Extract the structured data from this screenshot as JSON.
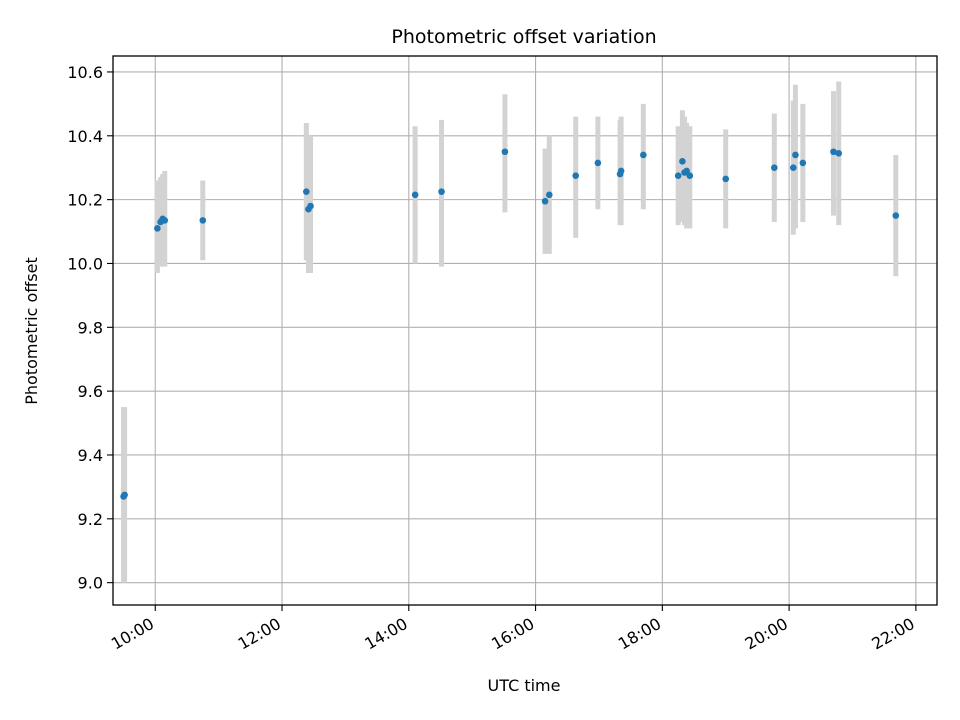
{
  "chart_data": {
    "type": "scatter",
    "title": "Photometric offset variation",
    "xlabel": "UTC time",
    "ylabel": "Photometric offset",
    "x_is_time": true,
    "x_unit": "HH:MM",
    "xlim": [
      "09:20",
      "22:20"
    ],
    "ylim": [
      8.93,
      10.65
    ],
    "xticks": [
      "10:00",
      "12:00",
      "14:00",
      "16:00",
      "18:00",
      "20:00",
      "22:00"
    ],
    "yticks": [
      9.0,
      9.2,
      9.4,
      9.6,
      9.8,
      10.0,
      10.2,
      10.4,
      10.6
    ],
    "ytick_labels": [
      "9.0",
      "9.2",
      "9.4",
      "9.6",
      "9.8",
      "10.0",
      "10.2",
      "10.4",
      "10.6"
    ],
    "grid": true,
    "colors": {
      "point": "#1f77b4",
      "errorbar": "#d3d3d3",
      "grid": "#b0b0b0"
    },
    "series": [
      {
        "points": [
          {
            "x": "09:30",
            "y": 9.27,
            "err": [
              9.0,
              9.55
            ]
          },
          {
            "x": "09:31",
            "y": 9.275,
            "err": [
              9.0,
              9.55
            ]
          },
          {
            "x": "10:02",
            "y": 10.11,
            "err": [
              9.97,
              10.26
            ]
          },
          {
            "x": "10:05",
            "y": 10.13,
            "err": [
              9.99,
              10.27
            ]
          },
          {
            "x": "10:07",
            "y": 10.14,
            "err": [
              10.0,
              10.28
            ]
          },
          {
            "x": "10:09",
            "y": 10.135,
            "err": [
              9.99,
              10.29
            ]
          },
          {
            "x": "10:45",
            "y": 10.135,
            "err": [
              10.01,
              10.26
            ]
          },
          {
            "x": "12:23",
            "y": 10.225,
            "err": [
              10.01,
              10.44
            ]
          },
          {
            "x": "12:25",
            "y": 10.17,
            "err": [
              9.97,
              10.39
            ]
          },
          {
            "x": "12:27",
            "y": 10.18,
            "err": [
              9.97,
              10.4
            ]
          },
          {
            "x": "14:06",
            "y": 10.215,
            "err": [
              10.0,
              10.43
            ]
          },
          {
            "x": "14:31",
            "y": 10.225,
            "err": [
              9.99,
              10.45
            ]
          },
          {
            "x": "15:31",
            "y": 10.35,
            "err": [
              10.16,
              10.53
            ]
          },
          {
            "x": "16:09",
            "y": 10.195,
            "err": [
              10.03,
              10.36
            ]
          },
          {
            "x": "16:13",
            "y": 10.215,
            "err": [
              10.03,
              10.4
            ]
          },
          {
            "x": "16:38",
            "y": 10.275,
            "err": [
              10.08,
              10.46
            ]
          },
          {
            "x": "16:59",
            "y": 10.315,
            "err": [
              10.17,
              10.46
            ]
          },
          {
            "x": "17:20",
            "y": 10.28,
            "err": [
              10.12,
              10.45
            ]
          },
          {
            "x": "17:21",
            "y": 10.29,
            "err": [
              10.12,
              10.46
            ]
          },
          {
            "x": "17:42",
            "y": 10.34,
            "err": [
              10.17,
              10.5
            ]
          },
          {
            "x": "18:15",
            "y": 10.275,
            "err": [
              10.12,
              10.43
            ]
          },
          {
            "x": "18:19",
            "y": 10.32,
            "err": [
              10.13,
              10.48
            ]
          },
          {
            "x": "18:21",
            "y": 10.285,
            "err": [
              10.12,
              10.46
            ]
          },
          {
            "x": "18:23",
            "y": 10.29,
            "err": [
              10.11,
              10.44
            ]
          },
          {
            "x": "18:26",
            "y": 10.275,
            "err": [
              10.11,
              10.43
            ]
          },
          {
            "x": "19:00",
            "y": 10.265,
            "err": [
              10.11,
              10.42
            ]
          },
          {
            "x": "19:46",
            "y": 10.3,
            "err": [
              10.13,
              10.47
            ]
          },
          {
            "x": "20:04",
            "y": 10.3,
            "err": [
              10.09,
              10.51
            ]
          },
          {
            "x": "20:06",
            "y": 10.34,
            "err": [
              10.11,
              10.56
            ]
          },
          {
            "x": "20:13",
            "y": 10.315,
            "err": [
              10.13,
              10.5
            ]
          },
          {
            "x": "20:42",
            "y": 10.35,
            "err": [
              10.15,
              10.54
            ]
          },
          {
            "x": "20:47",
            "y": 10.345,
            "err": [
              10.12,
              10.57
            ]
          },
          {
            "x": "21:41",
            "y": 10.15,
            "err": [
              9.96,
              10.34
            ]
          }
        ]
      }
    ]
  }
}
